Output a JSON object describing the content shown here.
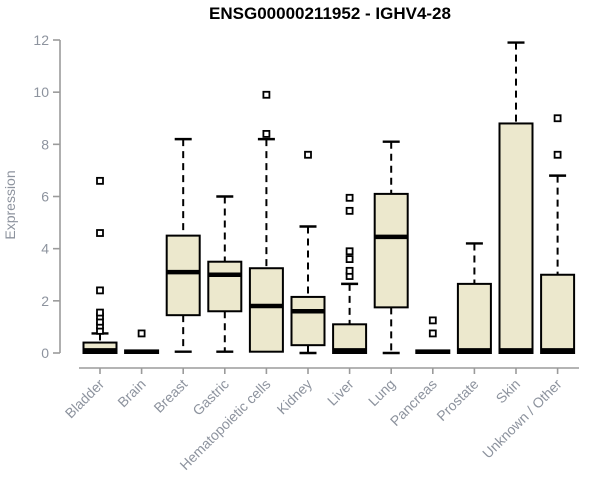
{
  "header": {
    "title": "ENSG00000211952 - IGHV4-28"
  },
  "colors": {
    "box_fill": "#ece8cd",
    "box_border": "#000000",
    "median": "#000000",
    "whisker": "#000000",
    "outlier_fill": "#ffffff",
    "outlier_border": "#000000",
    "axis_line": "#9b9b9b",
    "tick_label": "#8d939e",
    "title_color": "#000000",
    "background": "#ffffff"
  },
  "chart_data": {
    "type": "boxplot",
    "title": "ENSG00000211952 - IGHV4-28",
    "xlabel": "",
    "ylabel": "Expression",
    "ylim": [
      0,
      12
    ],
    "yticks": [
      0,
      2,
      4,
      6,
      8,
      10,
      12
    ],
    "grid": false,
    "legend": "none",
    "categories": [
      "Bladder",
      "Brain",
      "Breast",
      "Gastric",
      "Hematopoietic cells",
      "Kidney",
      "Liver",
      "Lung",
      "Pancreas",
      "Prostate",
      "Skin",
      "Unknown / Other"
    ],
    "series": [
      {
        "name": "Bladder",
        "whisker_low": 0,
        "q1": 0,
        "median": 0.1,
        "q3": 0.4,
        "whisker_high": 0.75,
        "outliers": [
          0.85,
          1.05,
          1.2,
          1.4,
          1.55,
          2.4,
          4.6,
          6.6
        ]
      },
      {
        "name": "Brain",
        "whisker_low": 0,
        "q1": 0,
        "median": 0.05,
        "q3": 0.1,
        "whisker_high": 0.1,
        "outliers": [
          0.75
        ]
      },
      {
        "name": "Breast",
        "whisker_low": 0.05,
        "q1": 1.45,
        "median": 3.1,
        "q3": 4.5,
        "whisker_high": 8.2,
        "outliers": []
      },
      {
        "name": "Gastric",
        "whisker_low": 0.05,
        "q1": 1.6,
        "median": 3.0,
        "q3": 3.5,
        "whisker_high": 6.0,
        "outliers": []
      },
      {
        "name": "Hematopoietic cells",
        "whisker_low": 0,
        "q1": 0.05,
        "median": 1.8,
        "q3": 3.25,
        "whisker_high": 8.2,
        "outliers": [
          8.4,
          9.9
        ]
      },
      {
        "name": "Kidney",
        "whisker_low": 0,
        "q1": 0.3,
        "median": 1.6,
        "q3": 2.15,
        "whisker_high": 4.85,
        "outliers": [
          7.6
        ]
      },
      {
        "name": "Liver",
        "whisker_low": 0,
        "q1": 0,
        "median": 0.1,
        "q3": 1.1,
        "whisker_high": 2.65,
        "outliers": [
          2.95,
          3.15,
          3.6,
          3.9,
          5.45,
          5.95
        ]
      },
      {
        "name": "Lung",
        "whisker_low": 0,
        "q1": 1.75,
        "median": 4.45,
        "q3": 6.1,
        "whisker_high": 8.1,
        "outliers": []
      },
      {
        "name": "Pancreas",
        "whisker_low": 0,
        "q1": 0,
        "median": 0.05,
        "q3": 0.1,
        "whisker_high": 0.1,
        "outliers": [
          0.75,
          1.25
        ]
      },
      {
        "name": "Prostate",
        "whisker_low": 0,
        "q1": 0,
        "median": 0.1,
        "q3": 2.65,
        "whisker_high": 4.2,
        "outliers": []
      },
      {
        "name": "Skin",
        "whisker_low": 0,
        "q1": 0,
        "median": 0.1,
        "q3": 8.8,
        "whisker_high": 11.9,
        "outliers": []
      },
      {
        "name": "Unknown / Other",
        "whisker_low": 0,
        "q1": 0,
        "median": 0.1,
        "q3": 3.0,
        "whisker_high": 6.8,
        "outliers": [
          7.6,
          9.0
        ]
      }
    ]
  }
}
